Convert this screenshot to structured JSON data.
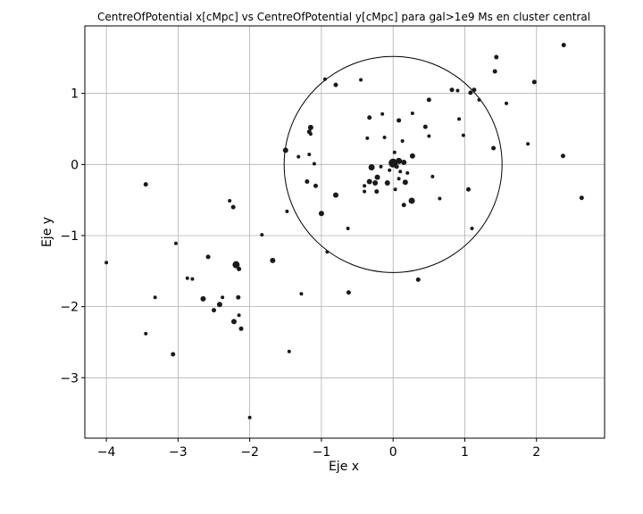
{
  "chart_data": {
    "type": "scatter",
    "title": "CentreOfPotential x[cMpc] vs CentreOfPotential y[cMpc] para gal>1e9 Ms en cluster central",
    "xlabel": "Eje x",
    "ylabel": "Eje y",
    "xlim": [
      -4.3,
      2.95
    ],
    "ylim": [
      -3.85,
      1.95
    ],
    "xticks": [
      -4,
      -3,
      -2,
      -1,
      0,
      1,
      2
    ],
    "yticks": [
      -3,
      -2,
      -1,
      0,
      1
    ],
    "xtick_labels": [
      "−4",
      "−3",
      "−2",
      "−1",
      "0",
      "1",
      "2"
    ],
    "ytick_labels": [
      "−3",
      "−2",
      "−1",
      "0",
      "1"
    ],
    "grid": true,
    "point_color": "#1a1a1a",
    "circle": {
      "cx": 0,
      "cy": 0,
      "r": 1.52,
      "color": "#000000"
    },
    "points": [
      {
        "x": 0.0,
        "y": 0.02,
        "s": 5
      },
      {
        "x": 0.08,
        "y": 0.05,
        "s": 3.5
      },
      {
        "x": 0.15,
        "y": 0.03,
        "s": 3
      },
      {
        "x": 0.27,
        "y": 0.12,
        "s": 3
      },
      {
        "x": 0.05,
        "y": -0.03,
        "s": 2.5
      },
      {
        "x": 0.1,
        "y": -0.1,
        "s": 2
      },
      {
        "x": 0.2,
        "y": -0.12,
        "s": 2
      },
      {
        "x": -0.05,
        "y": -0.08,
        "s": 2
      },
      {
        "x": 0.08,
        "y": -0.2,
        "s": 2
      },
      {
        "x": 0.17,
        "y": -0.25,
        "s": 3
      },
      {
        "x": -0.08,
        "y": -0.26,
        "s": 3
      },
      {
        "x": -0.22,
        "y": -0.18,
        "s": 3
      },
      {
        "x": -0.25,
        "y": -0.26,
        "s": 3
      },
      {
        "x": -0.33,
        "y": -0.24,
        "s": 3
      },
      {
        "x": -0.3,
        "y": -0.04,
        "s": 3.5
      },
      {
        "x": -0.17,
        "y": -0.03,
        "s": 2
      },
      {
        "x": 0.02,
        "y": 0.17,
        "s": 2
      },
      {
        "x": -0.12,
        "y": 0.38,
        "s": 2
      },
      {
        "x": 0.13,
        "y": 0.33,
        "s": 2
      },
      {
        "x": -0.36,
        "y": 0.37,
        "s": 2
      },
      {
        "x": -0.33,
        "y": 0.66,
        "s": 2.5
      },
      {
        "x": -0.15,
        "y": 0.71,
        "s": 2
      },
      {
        "x": 0.08,
        "y": 0.62,
        "s": 2.5
      },
      {
        "x": 0.27,
        "y": 0.72,
        "s": 2
      },
      {
        "x": 0.45,
        "y": 0.53,
        "s": 2.5
      },
      {
        "x": 0.5,
        "y": 0.4,
        "s": 2
      },
      {
        "x": 0.5,
        "y": 0.91,
        "s": 2.5
      },
      {
        "x": 0.82,
        "y": 1.05,
        "s": 2.5
      },
      {
        "x": 0.9,
        "y": 1.04,
        "s": 2
      },
      {
        "x": 0.92,
        "y": 0.64,
        "s": 2
      },
      {
        "x": 0.98,
        "y": 0.41,
        "s": 2
      },
      {
        "x": 1.08,
        "y": 1.01,
        "s": 2.5
      },
      {
        "x": 1.13,
        "y": 1.05,
        "s": 2.5
      },
      {
        "x": 1.2,
        "y": 0.91,
        "s": 2
      },
      {
        "x": 1.42,
        "y": 1.31,
        "s": 2.5
      },
      {
        "x": 1.44,
        "y": 1.51,
        "s": 2.5
      },
      {
        "x": 1.58,
        "y": 0.86,
        "s": 2
      },
      {
        "x": 1.4,
        "y": 0.23,
        "s": 2.5
      },
      {
        "x": 1.88,
        "y": 0.29,
        "s": 2
      },
      {
        "x": 1.97,
        "y": 1.16,
        "s": 2.5
      },
      {
        "x": 2.38,
        "y": 1.68,
        "s": 2.5
      },
      {
        "x": 2.37,
        "y": 0.12,
        "s": 2.5
      },
      {
        "x": 2.63,
        "y": -0.47,
        "s": 2.5
      },
      {
        "x": 1.05,
        "y": -0.35,
        "s": 2.5
      },
      {
        "x": 1.1,
        "y": -0.9,
        "s": 2
      },
      {
        "x": 0.65,
        "y": -0.48,
        "s": 2
      },
      {
        "x": 0.55,
        "y": -0.17,
        "s": 2
      },
      {
        "x": 0.26,
        "y": -0.51,
        "s": 3.5
      },
      {
        "x": 0.15,
        "y": -0.57,
        "s": 2.5
      },
      {
        "x": 0.03,
        "y": -0.35,
        "s": 2
      },
      {
        "x": -0.4,
        "y": -0.3,
        "s": 2
      },
      {
        "x": -0.4,
        "y": -0.38,
        "s": 2
      },
      {
        "x": -0.23,
        "y": -0.38,
        "s": 2.5
      },
      {
        "x": -0.8,
        "y": -0.43,
        "s": 3
      },
      {
        "x": -1.0,
        "y": -0.69,
        "s": 3
      },
      {
        "x": -0.63,
        "y": -0.9,
        "s": 2
      },
      {
        "x": -0.92,
        "y": -1.23,
        "s": 2
      },
      {
        "x": -0.62,
        "y": -1.8,
        "s": 2.5
      },
      {
        "x": 0.35,
        "y": -1.62,
        "s": 2.5
      },
      {
        "x": -1.48,
        "y": -0.66,
        "s": 2
      },
      {
        "x": -1.08,
        "y": -0.3,
        "s": 2.5
      },
      {
        "x": -1.2,
        "y": -0.24,
        "s": 2.5
      },
      {
        "x": -1.32,
        "y": 0.11,
        "s": 2
      },
      {
        "x": -1.17,
        "y": 0.14,
        "s": 2
      },
      {
        "x": -1.1,
        "y": 0.01,
        "s": 2
      },
      {
        "x": -1.5,
        "y": 0.2,
        "s": 3
      },
      {
        "x": -1.17,
        "y": 0.46,
        "s": 2.5
      },
      {
        "x": -1.15,
        "y": 0.43,
        "s": 2
      },
      {
        "x": -1.15,
        "y": 0.52,
        "s": 3
      },
      {
        "x": -0.95,
        "y": 1.2,
        "s": 2
      },
      {
        "x": -0.8,
        "y": 1.12,
        "s": 2.5
      },
      {
        "x": -0.45,
        "y": 1.19,
        "s": 2
      },
      {
        "x": -3.45,
        "y": -0.28,
        "s": 2.5
      },
      {
        "x": -2.28,
        "y": -0.51,
        "s": 2
      },
      {
        "x": -2.23,
        "y": -0.6,
        "s": 2.5
      },
      {
        "x": -1.83,
        "y": -0.99,
        "s": 2
      },
      {
        "x": -3.03,
        "y": -1.11,
        "s": 2
      },
      {
        "x": -2.58,
        "y": -1.3,
        "s": 2.5
      },
      {
        "x": -2.87,
        "y": -1.6,
        "s": 2
      },
      {
        "x": -2.8,
        "y": -1.61,
        "s": 2
      },
      {
        "x": -2.19,
        "y": -1.41,
        "s": 4
      },
      {
        "x": -2.15,
        "y": -1.47,
        "s": 2.5
      },
      {
        "x": -1.68,
        "y": -1.35,
        "s": 3
      },
      {
        "x": -1.28,
        "y": -1.82,
        "s": 2
      },
      {
        "x": -3.32,
        "y": -1.87,
        "s": 2
      },
      {
        "x": -2.65,
        "y": -1.89,
        "s": 3
      },
      {
        "x": -2.38,
        "y": -1.87,
        "s": 2
      },
      {
        "x": -2.16,
        "y": -1.87,
        "s": 2.5
      },
      {
        "x": -2.42,
        "y": -1.97,
        "s": 3
      },
      {
        "x": -2.5,
        "y": -2.05,
        "s": 2.5
      },
      {
        "x": -2.15,
        "y": -2.12,
        "s": 2
      },
      {
        "x": -2.22,
        "y": -2.21,
        "s": 3
      },
      {
        "x": -2.12,
        "y": -2.31,
        "s": 2.5
      },
      {
        "x": -3.45,
        "y": -2.38,
        "s": 2
      },
      {
        "x": -3.07,
        "y": -2.67,
        "s": 2.5
      },
      {
        "x": -1.45,
        "y": -2.63,
        "s": 2
      },
      {
        "x": -4.0,
        "y": -1.38,
        "s": 2
      },
      {
        "x": -2.0,
        "y": -3.56,
        "s": 2
      }
    ]
  }
}
